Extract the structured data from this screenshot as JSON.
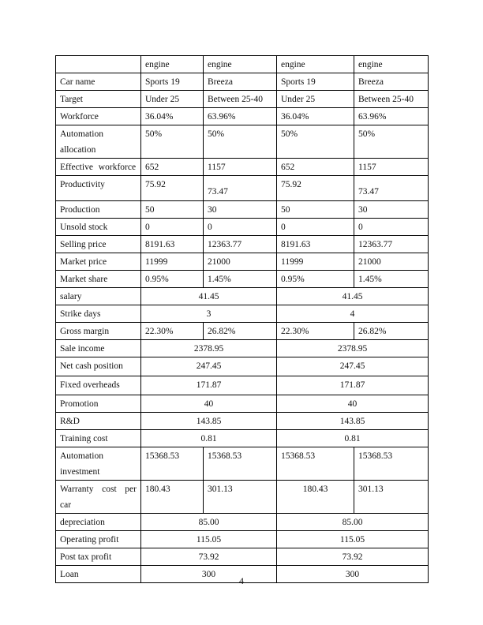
{
  "table": {
    "rows": [
      {
        "label": "",
        "cells": [
          "engine",
          "engine",
          "engine",
          "engine"
        ]
      },
      {
        "label": "Car name",
        "cells": [
          "Sports 19",
          "Breeza",
          "Sports 19",
          "Breeza"
        ]
      },
      {
        "label": "Target",
        "cells": [
          "Under 25",
          "Between 25-40",
          "Under 25",
          "Between 25-40"
        ]
      },
      {
        "label": "Workforce",
        "cells": [
          "36.04%",
          "63.96%",
          "36.04%",
          "63.96%"
        ]
      },
      {
        "label": "Automation allocation",
        "cells": [
          "50%",
          "50%",
          "50%",
          "50%"
        ]
      },
      {
        "label": "Effective workforce",
        "cells": [
          "652",
          "1157",
          "652",
          "1157"
        ]
      },
      {
        "label": "Productivity",
        "cells": [
          "75.92",
          "73.47",
          "75.92",
          "73.47"
        ]
      },
      {
        "label": "Production",
        "cells": [
          "50",
          "30",
          "50",
          "30"
        ]
      },
      {
        "label": "Unsold stock",
        "cells": [
          "0",
          "0",
          "0",
          "0"
        ]
      },
      {
        "label": "Selling price",
        "cells": [
          "8191.63",
          "12363.77",
          "8191.63",
          "12363.77"
        ]
      },
      {
        "label": "Market price",
        "cells": [
          "11999",
          "21000",
          "11999",
          "21000"
        ]
      },
      {
        "label": "Market share",
        "cells": [
          "0.95%",
          "1.45%",
          "0.95%",
          "1.45%"
        ]
      },
      {
        "label": "salary",
        "merged": [
          "41.45",
          "41.45"
        ]
      },
      {
        "label": "Strike days",
        "merged": [
          "3",
          "4"
        ]
      },
      {
        "label": "Gross margin",
        "cells": [
          "22.30%",
          "26.82%",
          "22.30%",
          "26.82%"
        ]
      },
      {
        "label": "Sale income",
        "merged": [
          "2378.95",
          "2378.95"
        ]
      },
      {
        "label": "Net cash position",
        "merged": [
          "247.45",
          "247.45"
        ]
      },
      {
        "label": "Fixed overheads",
        "merged": [
          "171.87",
          "171.87"
        ]
      },
      {
        "label": "Promotion",
        "merged": [
          "40",
          "40"
        ]
      },
      {
        "label": "R&D",
        "merged": [
          "143.85",
          "143.85"
        ]
      },
      {
        "label": "Training cost",
        "merged": [
          "0.81",
          "0.81"
        ]
      },
      {
        "label": "Automation investment",
        "cells": [
          "15368.53",
          "15368.53",
          "15368.53",
          "15368.53"
        ]
      },
      {
        "label": "Warranty cost per car",
        "cells": [
          "180.43",
          "301.13",
          "180.43",
          "301.13"
        ]
      },
      {
        "label": "depreciation",
        "merged": [
          "85.00",
          "85.00"
        ]
      },
      {
        "label": "Operating profit",
        "merged": [
          "115.05",
          "115.05"
        ]
      },
      {
        "label": "Post tax profit",
        "merged": [
          "73.92",
          "73.92"
        ]
      },
      {
        "label": "Loan",
        "merged": [
          "300",
          "300"
        ]
      }
    ]
  },
  "page_number": "4"
}
